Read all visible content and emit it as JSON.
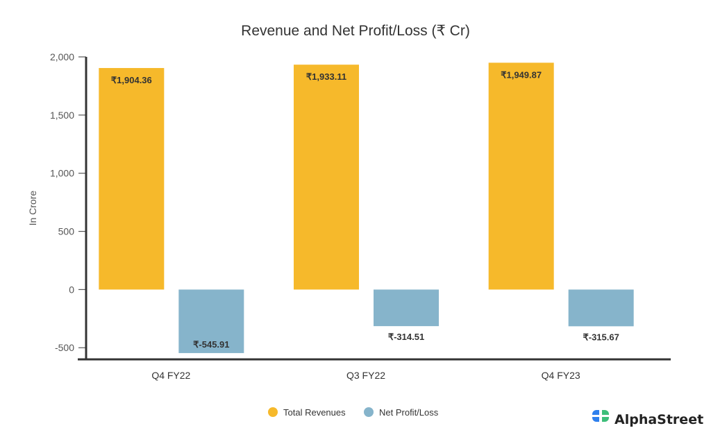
{
  "chart_data": {
    "type": "bar",
    "title": "Revenue and Net Profit/Loss (₹ Cr)",
    "xlabel": "",
    "ylabel": "In Crore",
    "ylim": [
      -600,
      2000
    ],
    "yticks": [
      2000,
      1500,
      1000,
      500,
      0,
      -500
    ],
    "ytick_labels": [
      "2,000",
      "1,500",
      "1,000",
      "500",
      "0",
      "-500"
    ],
    "grid": false,
    "legend_position": "bottom-center",
    "categories": [
      "Q4 FY22",
      "Q3 FY22",
      "Q4 FY23"
    ],
    "series": [
      {
        "name": "Total Revenues",
        "color": "#F6B92B",
        "values": [
          1904.36,
          1933.11,
          1949.87
        ],
        "labels": [
          "₹1,904.36",
          "₹1,933.11",
          "₹1,949.87"
        ]
      },
      {
        "name": "Net Profit/Loss",
        "color": "#86B4CB",
        "values": [
          -545.91,
          -314.51,
          -315.67
        ],
        "labels": [
          "₹-545.91",
          "₹-314.51",
          "₹-315.67"
        ]
      }
    ]
  },
  "branding": {
    "logo_text": "AlphaStreet",
    "logo_colors": [
      "#2F80ED",
      "#3DBE7A"
    ]
  }
}
